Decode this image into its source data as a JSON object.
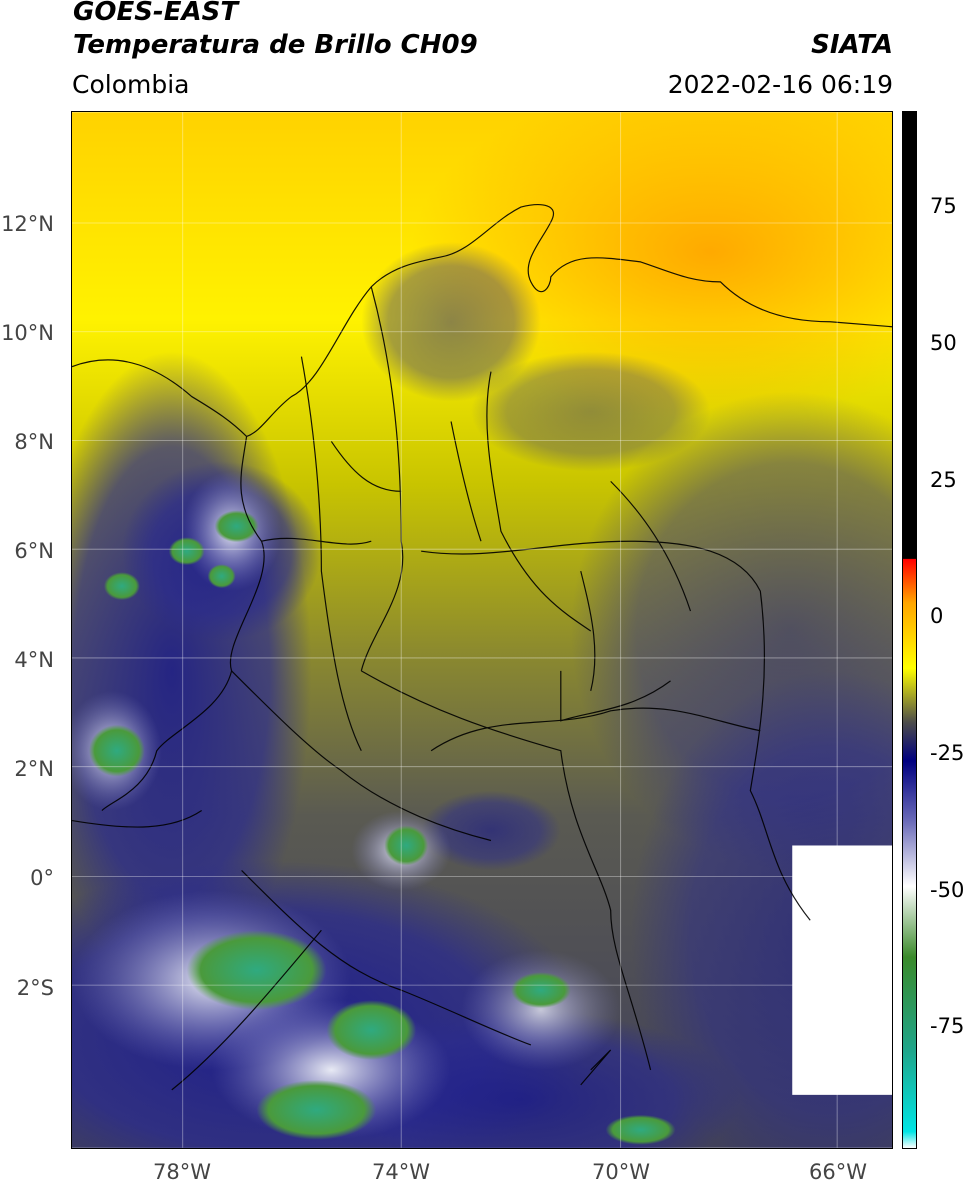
{
  "header": {
    "satellite": "GOES-EAST",
    "product": "Temperatura de Brillo CH09",
    "region": "Colombia",
    "agency": "SIATA",
    "timestamp": "2022-02-16 06:19"
  },
  "map": {
    "lat_labels": [
      "12°N",
      "10°N",
      "8°N",
      "6°N",
      "4°N",
      "2°N",
      "0°",
      "2°S"
    ],
    "lon_labels": [
      "78°W",
      "74°W",
      "70°W",
      "66°W"
    ],
    "lat_values": [
      12,
      10,
      8,
      6,
      4,
      2,
      0,
      -2
    ],
    "lon_values": [
      -78,
      -74,
      -70,
      -66
    ],
    "extent": {
      "lon_min": -80,
      "lon_max": -65,
      "lat_min": -4.7,
      "lat_max": 14
    },
    "gridlines": true
  },
  "colorbar": {
    "tick_labels": [
      "75",
      "50",
      "25",
      "0",
      "-25",
      "-50",
      "-75"
    ],
    "tick_values": [
      75,
      50,
      25,
      0,
      -25,
      -50,
      -75
    ],
    "range": [
      -100,
      90
    ],
    "stops": [
      {
        "value": -100,
        "color": "#ffffff"
      },
      {
        "value": -97,
        "color": "#00e5e5"
      },
      {
        "value": -82,
        "color": "#1fa58a"
      },
      {
        "value": -65,
        "color": "#3a8a2a"
      },
      {
        "value": -52,
        "color": "#ffffff"
      },
      {
        "value": -40,
        "color": "#6a6ab8"
      },
      {
        "value": -29,
        "color": "#000080"
      },
      {
        "value": -22,
        "color": "#4b4b4b"
      },
      {
        "value": -12,
        "color": "#ffff00"
      },
      {
        "value": 0,
        "color": "#ffa500"
      },
      {
        "value": 8,
        "color": "#ff0000"
      },
      {
        "value": 8.1,
        "color": "#000000"
      },
      {
        "value": 90,
        "color": "#000000"
      }
    ]
  }
}
